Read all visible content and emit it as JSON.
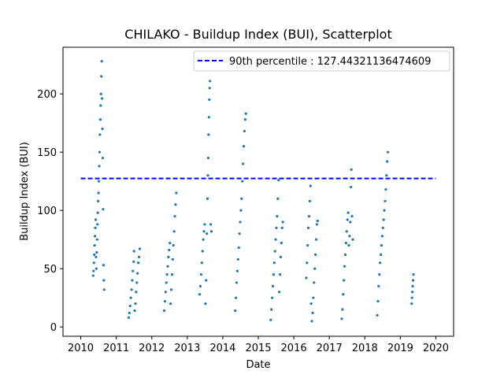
{
  "chart_data": {
    "type": "scatter",
    "title": "CHILAKO - Buildup Index (BUI), Scatterplot",
    "xlabel": "Date",
    "ylabel": "Buildup Index (BUI)",
    "xlim": [
      2009.5,
      2020.5
    ],
    "ylim": [
      -8,
      240
    ],
    "x_ticks": [
      2010,
      2011,
      2012,
      2013,
      2014,
      2015,
      2016,
      2017,
      2018,
      2019,
      2020
    ],
    "y_ticks": [
      0,
      50,
      100,
      150,
      200
    ],
    "grid": false,
    "legend_position": "top-right",
    "colors": {
      "points": "#1f77b4",
      "threshold": "#0000ff"
    },
    "threshold": {
      "name": "90th percentile : 127.44321136474609",
      "value": 127.44321136474609,
      "x_range": [
        2010.0,
        2020.0
      ],
      "style": "dashed"
    },
    "series": [
      {
        "name": "BUI",
        "points": [
          [
            2010.35,
            44
          ],
          [
            2010.36,
            48
          ],
          [
            2010.37,
            55
          ],
          [
            2010.38,
            62
          ],
          [
            2010.39,
            70
          ],
          [
            2010.4,
            78
          ],
          [
            2010.41,
            85
          ],
          [
            2010.42,
            92
          ],
          [
            2010.43,
            60
          ],
          [
            2010.44,
            50
          ],
          [
            2010.45,
            64
          ],
          [
            2010.46,
            75
          ],
          [
            2010.47,
            88
          ],
          [
            2010.48,
            98
          ],
          [
            2010.49,
            108
          ],
          [
            2010.5,
            115
          ],
          [
            2010.51,
            125
          ],
          [
            2010.52,
            138
          ],
          [
            2010.53,
            150
          ],
          [
            2010.54,
            165
          ],
          [
            2010.55,
            178
          ],
          [
            2010.56,
            190
          ],
          [
            2010.57,
            200
          ],
          [
            2010.58,
            215
          ],
          [
            2010.59,
            228
          ],
          [
            2010.6,
            196
          ],
          [
            2010.61,
            170
          ],
          [
            2010.62,
            145
          ],
          [
            2010.63,
            101
          ],
          [
            2010.64,
            53
          ],
          [
            2010.65,
            40
          ],
          [
            2010.66,
            32
          ],
          [
            2011.35,
            8
          ],
          [
            2011.37,
            12
          ],
          [
            2011.39,
            18
          ],
          [
            2011.41,
            25
          ],
          [
            2011.43,
            32
          ],
          [
            2011.45,
            40
          ],
          [
            2011.47,
            48
          ],
          [
            2011.49,
            56
          ],
          [
            2011.5,
            65
          ],
          [
            2011.52,
            14
          ],
          [
            2011.54,
            20
          ],
          [
            2011.56,
            30
          ],
          [
            2011.58,
            38
          ],
          [
            2011.6,
            46
          ],
          [
            2011.62,
            55
          ],
          [
            2011.64,
            60
          ],
          [
            2011.66,
            67
          ],
          [
            2012.35,
            14
          ],
          [
            2012.37,
            22
          ],
          [
            2012.39,
            30
          ],
          [
            2012.41,
            38
          ],
          [
            2012.43,
            45
          ],
          [
            2012.45,
            52
          ],
          [
            2012.47,
            60
          ],
          [
            2012.49,
            66
          ],
          [
            2012.51,
            72
          ],
          [
            2012.53,
            20
          ],
          [
            2012.55,
            32
          ],
          [
            2012.57,
            45
          ],
          [
            2012.59,
            58
          ],
          [
            2012.61,
            70
          ],
          [
            2012.63,
            82
          ],
          [
            2012.65,
            95
          ],
          [
            2012.67,
            105
          ],
          [
            2012.69,
            115
          ],
          [
            2013.35,
            28
          ],
          [
            2013.37,
            35
          ],
          [
            2013.39,
            45
          ],
          [
            2013.41,
            55
          ],
          [
            2013.43,
            65
          ],
          [
            2013.45,
            75
          ],
          [
            2013.47,
            82
          ],
          [
            2013.49,
            88
          ],
          [
            2013.51,
            20
          ],
          [
            2013.53,
            40
          ],
          [
            2013.55,
            80
          ],
          [
            2013.57,
            110
          ],
          [
            2013.58,
            130
          ],
          [
            2013.59,
            145
          ],
          [
            2013.6,
            165
          ],
          [
            2013.61,
            180
          ],
          [
            2013.62,
            195
          ],
          [
            2013.63,
            205
          ],
          [
            2013.64,
            211
          ],
          [
            2013.66,
            88
          ],
          [
            2013.68,
            82
          ],
          [
            2014.35,
            14
          ],
          [
            2014.37,
            25
          ],
          [
            2014.39,
            38
          ],
          [
            2014.41,
            48
          ],
          [
            2014.43,
            58
          ],
          [
            2014.45,
            68
          ],
          [
            2014.47,
            80
          ],
          [
            2014.49,
            90
          ],
          [
            2014.51,
            100
          ],
          [
            2014.53,
            110
          ],
          [
            2014.55,
            125
          ],
          [
            2014.57,
            140
          ],
          [
            2014.59,
            155
          ],
          [
            2014.61,
            168
          ],
          [
            2014.63,
            178
          ],
          [
            2014.65,
            183
          ],
          [
            2015.35,
            6
          ],
          [
            2015.37,
            15
          ],
          [
            2015.39,
            25
          ],
          [
            2015.41,
            35
          ],
          [
            2015.43,
            45
          ],
          [
            2015.45,
            55
          ],
          [
            2015.47,
            65
          ],
          [
            2015.49,
            75
          ],
          [
            2015.51,
            85
          ],
          [
            2015.53,
            95
          ],
          [
            2015.55,
            110
          ],
          [
            2015.57,
            126
          ],
          [
            2015.59,
            30
          ],
          [
            2015.61,
            45
          ],
          [
            2015.63,
            60
          ],
          [
            2015.65,
            72
          ],
          [
            2015.67,
            85
          ],
          [
            2015.69,
            90
          ],
          [
            2016.35,
            42
          ],
          [
            2016.37,
            55
          ],
          [
            2016.39,
            70
          ],
          [
            2016.41,
            85
          ],
          [
            2016.43,
            95
          ],
          [
            2016.45,
            108
          ],
          [
            2016.47,
            121
          ],
          [
            2016.49,
            20
          ],
          [
            2016.51,
            5
          ],
          [
            2016.53,
            12
          ],
          [
            2016.55,
            25
          ],
          [
            2016.57,
            38
          ],
          [
            2016.59,
            50
          ],
          [
            2016.61,
            62
          ],
          [
            2016.63,
            75
          ],
          [
            2016.65,
            88
          ],
          [
            2016.67,
            91
          ],
          [
            2017.35,
            7
          ],
          [
            2017.37,
            15
          ],
          [
            2017.39,
            28
          ],
          [
            2017.41,
            40
          ],
          [
            2017.43,
            52
          ],
          [
            2017.45,
            62
          ],
          [
            2017.47,
            72
          ],
          [
            2017.49,
            82
          ],
          [
            2017.51,
            92
          ],
          [
            2017.53,
            98
          ],
          [
            2017.55,
            70
          ],
          [
            2017.57,
            78
          ],
          [
            2017.59,
            90
          ],
          [
            2017.61,
            120
          ],
          [
            2017.62,
            135
          ],
          [
            2017.64,
            95
          ],
          [
            2017.66,
            75
          ],
          [
            2018.35,
            10
          ],
          [
            2018.37,
            22
          ],
          [
            2018.39,
            35
          ],
          [
            2018.41,
            45
          ],
          [
            2018.43,
            55
          ],
          [
            2018.45,
            62
          ],
          [
            2018.47,
            70
          ],
          [
            2018.49,
            78
          ],
          [
            2018.51,
            85
          ],
          [
            2018.53,
            92
          ],
          [
            2018.55,
            100
          ],
          [
            2018.57,
            108
          ],
          [
            2018.59,
            118
          ],
          [
            2018.61,
            130
          ],
          [
            2018.63,
            142
          ],
          [
            2018.65,
            150
          ],
          [
            2019.32,
            20
          ],
          [
            2019.33,
            25
          ],
          [
            2019.34,
            30
          ],
          [
            2019.35,
            35
          ],
          [
            2019.36,
            40
          ],
          [
            2019.37,
            45
          ]
        ]
      }
    ]
  }
}
